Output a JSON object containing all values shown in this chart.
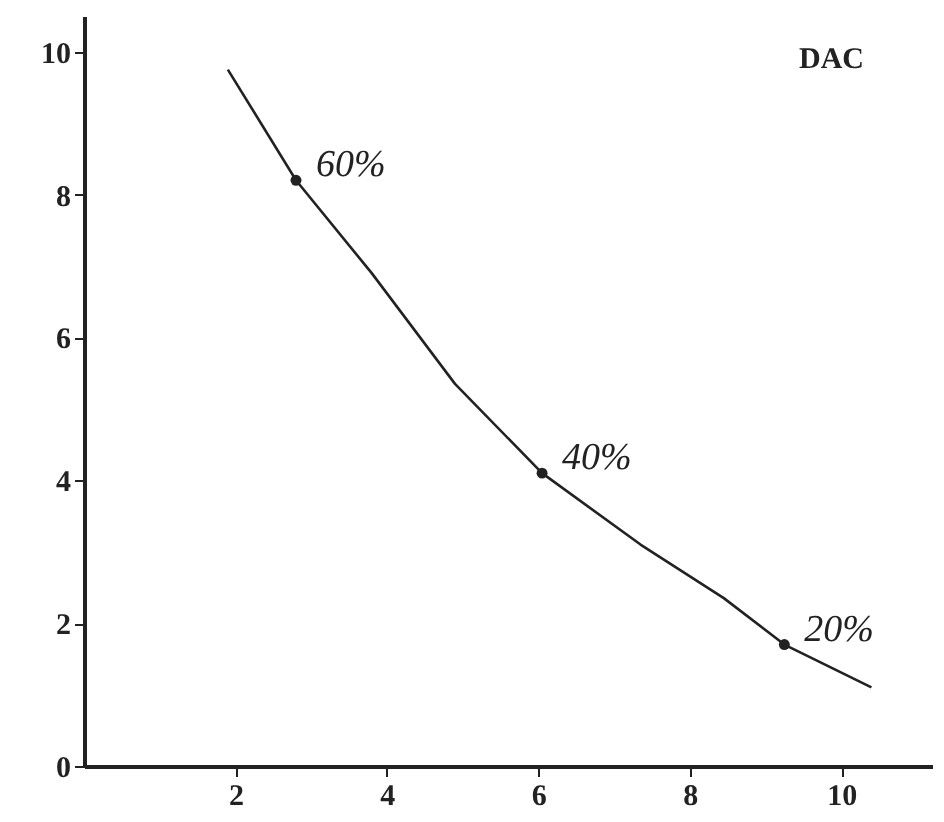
{
  "chart_data": {
    "type": "line",
    "series": [
      {
        "color": "#222222",
        "marker": "none",
        "line_style": "solid",
        "x": [
          1.9,
          2.8,
          3.8,
          4.9,
          6.05,
          7.35,
          8.45,
          9.25,
          10.4
        ],
        "values": [
          9.75,
          8.2,
          6.9,
          5.35,
          4.1,
          3.1,
          2.35,
          1.7,
          1.1
        ]
      },
      {
        "type": "scatter",
        "color": "#222222",
        "marker": "circle",
        "x": [
          2.8,
          6.05,
          9.25
        ],
        "values": [
          8.2,
          4.1,
          1.7
        ]
      }
    ],
    "annotations": [
      "DAC",
      {
        "text": "60%",
        "x": 2.8,
        "y": 8.2
      },
      {
        "text": "40%",
        "x": 6.05,
        "y": 4.1
      },
      {
        "text": "20%",
        "x": 9.25,
        "y": 1.7
      }
    ],
    "xlim": [
      0,
      11.2
    ],
    "xticks": [
      2,
      4,
      6,
      8,
      10
    ],
    "ylim": [
      0,
      10.5
    ],
    "yticks": [
      0,
      2,
      4,
      6,
      8,
      10
    ],
    "grid": false
  }
}
